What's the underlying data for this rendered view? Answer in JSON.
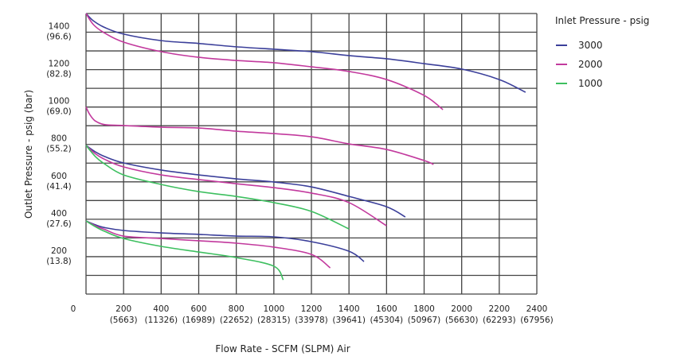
{
  "chart_data": {
    "type": "line",
    "title": "",
    "xlabel": "Flow Rate - SCFM (SLPM) Air",
    "ylabel": "Outlet Pressure - psig (bar)",
    "xlim": [
      0,
      2400
    ],
    "ylim": [
      0,
      1500
    ],
    "grid": true,
    "x_ticks": [
      {
        "value": 0,
        "label": "0",
        "sub": ""
      },
      {
        "value": 200,
        "label": "200",
        "sub": "(5663)"
      },
      {
        "value": 400,
        "label": "400",
        "sub": "(11326)"
      },
      {
        "value": 600,
        "label": "600",
        "sub": "(16989)"
      },
      {
        "value": 800,
        "label": "800",
        "sub": "(22652)"
      },
      {
        "value": 1000,
        "label": "1000",
        "sub": "(28315)"
      },
      {
        "value": 1200,
        "label": "1200",
        "sub": "(33978)"
      },
      {
        "value": 1400,
        "label": "1400",
        "sub": "(39641)"
      },
      {
        "value": 1600,
        "label": "1600",
        "sub": "(45304)"
      },
      {
        "value": 1800,
        "label": "1800",
        "sub": "(50967)"
      },
      {
        "value": 2000,
        "label": "2000",
        "sub": "(56630)"
      },
      {
        "value": 2200,
        "label": "2200",
        "sub": "(62293)"
      },
      {
        "value": 2400,
        "label": "2400",
        "sub": "(67956)"
      }
    ],
    "y_ticks": [
      {
        "value": 1400,
        "label": "1400",
        "sub": "(96.6)"
      },
      {
        "value": 1200,
        "label": "1200",
        "sub": "(82.8)"
      },
      {
        "value": 1000,
        "label": "1000",
        "sub": "(69.0)"
      },
      {
        "value": 800,
        "label": "800",
        "sub": "(55.2)"
      },
      {
        "value": 600,
        "label": "600",
        "sub": "(41.4)"
      },
      {
        "value": 400,
        "label": "400",
        "sub": "(27.6)"
      },
      {
        "value": 200,
        "label": "200",
        "sub": "(13.8)"
      }
    ],
    "legend": {
      "title": "Inlet Pressure - psig",
      "placement": "right",
      "entries": [
        {
          "name": "3000",
          "color": "#3b3f9a"
        },
        {
          "name": "2000",
          "color": "#c2399d"
        },
        {
          "name": "1000",
          "color": "#3dbf5f"
        }
      ]
    },
    "series": [
      {
        "name": "3000",
        "color": "#3b3f9a",
        "x": [
          0,
          40,
          100,
          200,
          400,
          600,
          800,
          1000,
          1200,
          1400,
          1600,
          1800,
          2000,
          2200,
          2340
        ],
        "y": [
          1500,
          1460,
          1425,
          1390,
          1355,
          1340,
          1322,
          1309,
          1296,
          1275,
          1258,
          1232,
          1203,
          1147,
          1079
        ]
      },
      {
        "name": "2000",
        "color": "#c2399d",
        "x": [
          0,
          40,
          100,
          200,
          400,
          600,
          800,
          1000,
          1200,
          1400,
          1600,
          1800,
          1900
        ],
        "y": [
          1500,
          1440,
          1395,
          1347,
          1296,
          1266,
          1249,
          1237,
          1215,
          1190,
          1147,
          1062,
          986
        ]
      },
      {
        "name": "2000",
        "color": "#c2399d",
        "x": [
          0,
          20,
          50,
          100,
          200,
          400,
          600,
          800,
          1000,
          1200,
          1400,
          1600,
          1800,
          1850
        ],
        "y": [
          1000,
          960,
          925,
          906,
          901,
          892,
          888,
          871,
          858,
          841,
          803,
          773,
          714,
          693
        ]
      },
      {
        "name": "3000",
        "color": "#3b3f9a",
        "x": [
          0,
          50,
          100,
          200,
          400,
          600,
          800,
          1000,
          1200,
          1400,
          1600,
          1700
        ],
        "y": [
          795,
          760,
          735,
          701,
          663,
          637,
          616,
          599,
          573,
          522,
          467,
          412
        ]
      },
      {
        "name": "2000",
        "color": "#c2399d",
        "x": [
          0,
          50,
          100,
          200,
          400,
          600,
          800,
          1000,
          1200,
          1400,
          1600
        ],
        "y": [
          795,
          750,
          720,
          680,
          637,
          612,
          590,
          569,
          540,
          489,
          365
        ]
      },
      {
        "name": "1000",
        "color": "#3dbf5f",
        "x": [
          0,
          50,
          100,
          200,
          400,
          600,
          800,
          1000,
          1200,
          1400
        ],
        "y": [
          795,
          735,
          695,
          637,
          586,
          548,
          522,
          489,
          442,
          348
        ]
      },
      {
        "name": "3000",
        "color": "#3b3f9a",
        "x": [
          0,
          50,
          100,
          200,
          400,
          600,
          800,
          1000,
          1200,
          1400,
          1480
        ],
        "y": [
          391,
          370,
          355,
          340,
          327,
          319,
          310,
          306,
          280,
          229,
          174
        ]
      },
      {
        "name": "2000",
        "color": "#c2399d",
        "x": [
          0,
          50,
          100,
          200,
          400,
          600,
          800,
          1000,
          1200,
          1300
        ],
        "y": [
          391,
          365,
          345,
          310,
          297,
          285,
          272,
          251,
          212,
          140
        ]
      },
      {
        "name": "1000",
        "color": "#3dbf5f",
        "x": [
          0,
          50,
          100,
          200,
          400,
          600,
          800,
          1000,
          1050
        ],
        "y": [
          391,
          360,
          335,
          297,
          255,
          225,
          195,
          149,
          76
        ]
      }
    ]
  }
}
